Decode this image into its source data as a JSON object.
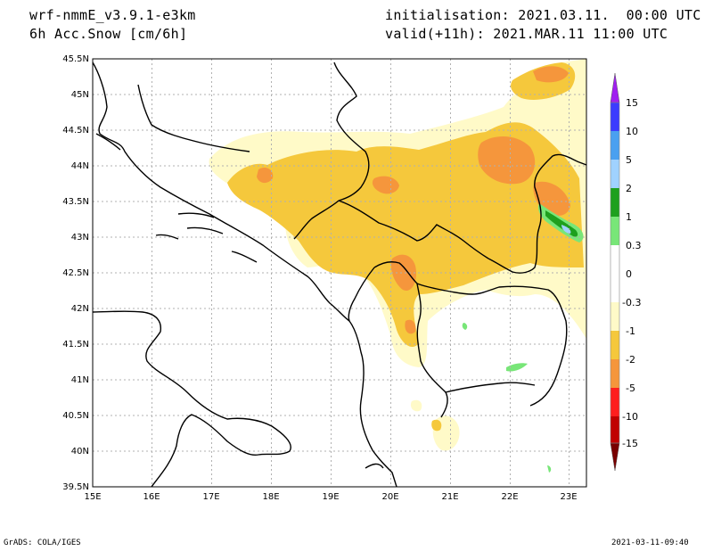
{
  "header": {
    "model": "wrf-nmmE_v3.9.1-e3km",
    "field": "6h Acc.Snow [cm/6h]",
    "init": "initialisation: 2021.03.11.  00:00 UTC",
    "valid": "valid(+11h): 2021.MAR.11 11:00 UTC"
  },
  "map": {
    "lon_range": [
      15,
      23.3
    ],
    "lat_range": [
      39.5,
      45.5
    ],
    "lon_ticks": [
      "15E",
      "16E",
      "17E",
      "18E",
      "19E",
      "20E",
      "21E",
      "22E",
      "23E"
    ],
    "lat_ticks": [
      "39.5N",
      "40N",
      "40.5N",
      "41N",
      "41.5N",
      "42N",
      "42.5N",
      "43N",
      "43.5N",
      "44N",
      "44.5N",
      "45N",
      "45.5N"
    ],
    "grid": true
  },
  "colorbar": {
    "labels": [
      "15",
      "10",
      "5",
      "2",
      "1",
      "0.3",
      "0",
      "-0.3",
      "-1",
      "-2",
      "-5",
      "-10",
      "-15"
    ],
    "colors": [
      "#a020f0",
      "#3c3cff",
      "#4aa0f0",
      "#a0d2ff",
      "#1ea01e",
      "#78e678",
      "#ffffff",
      "#fffac8",
      "#f5c83c",
      "#f5963c",
      "#ff1e1e",
      "#c00000",
      "#a00000",
      "#780000"
    ]
  },
  "footer": {
    "left": "GrADS: COLA/IGES",
    "right": "2021-03-11-09:40"
  }
}
